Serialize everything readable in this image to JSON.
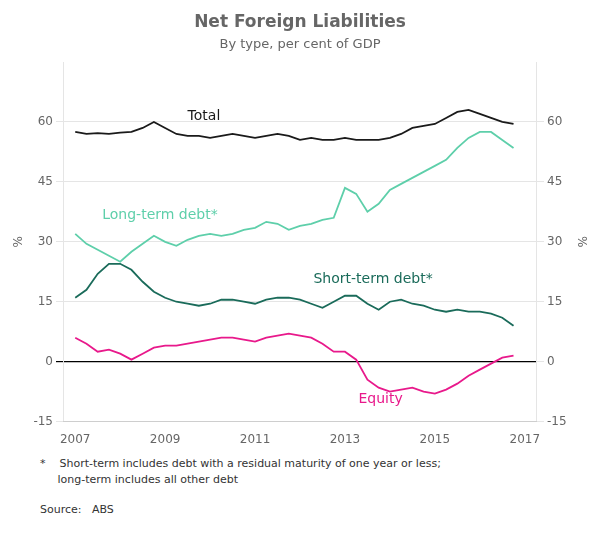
{
  "chart_data": {
    "type": "line",
    "title": "Net Foreign Liabilities",
    "subtitle": "By type, per cent of GDP",
    "ylabel": "%",
    "y2label": "%",
    "footnotes": [
      "*    Short-term includes debt with a residual maturity of one year or less;",
      "     long-term includes all other debt"
    ],
    "source": "Source:   ABS",
    "xlim": [
      2006.75,
      2017.25
    ],
    "xticks": [
      2007,
      2009,
      2011,
      2013,
      2015,
      2017
    ],
    "ylim": [
      -15,
      75
    ],
    "yticks": [
      -15,
      0,
      15,
      30,
      45,
      60
    ],
    "y2lim": [
      -15,
      75
    ],
    "y2ticks": [
      -15,
      0,
      15,
      30,
      45,
      60
    ],
    "grid": true,
    "x": [
      2007.0,
      2007.25,
      2007.5,
      2007.75,
      2008.0,
      2008.25,
      2008.5,
      2008.75,
      2009.0,
      2009.25,
      2009.5,
      2009.75,
      2010.0,
      2010.25,
      2010.5,
      2010.75,
      2011.0,
      2011.25,
      2011.5,
      2011.75,
      2012.0,
      2012.25,
      2012.5,
      2012.75,
      2013.0,
      2013.25,
      2013.5,
      2013.75,
      2014.0,
      2014.25,
      2014.5,
      2014.75,
      2015.0,
      2015.25,
      2015.5,
      2015.75,
      2016.0,
      2016.25,
      2016.5,
      2016.75
    ],
    "series": [
      {
        "name": "Total",
        "color": "#1a1a1a",
        "values": [
          57.5,
          57.0,
          57.2,
          57.0,
          57.3,
          57.5,
          58.5,
          60.0,
          58.5,
          57.0,
          56.5,
          56.5,
          56.0,
          56.5,
          57.0,
          56.5,
          56.0,
          56.5,
          57.0,
          56.5,
          55.5,
          56.0,
          55.5,
          55.5,
          56.0,
          55.5,
          55.5,
          55.5,
          56.0,
          57.0,
          58.5,
          59.0,
          59.5,
          61.0,
          62.5,
          63.0,
          62.0,
          61.0,
          60.0,
          59.5
        ]
      },
      {
        "name": "Long-term debt*",
        "color": "#5ecfaa",
        "values": [
          32.0,
          29.5,
          28.0,
          26.5,
          25.0,
          27.5,
          29.5,
          31.5,
          30.0,
          29.0,
          30.5,
          31.5,
          32.0,
          31.5,
          32.0,
          33.0,
          33.5,
          35.0,
          34.5,
          33.0,
          34.0,
          34.5,
          35.5,
          36.0,
          43.5,
          42.0,
          37.5,
          39.5,
          43.0,
          44.5,
          46.0,
          47.5,
          49.0,
          50.5,
          53.5,
          56.0,
          57.5,
          57.5,
          55.5,
          53.5
        ]
      },
      {
        "name": "Short-term debt*",
        "color": "#1a6b5a",
        "values": [
          16.0,
          18.0,
          22.0,
          24.5,
          24.5,
          23.0,
          20.0,
          17.5,
          16.0,
          15.0,
          14.5,
          14.0,
          14.5,
          15.5,
          15.5,
          15.0,
          14.5,
          15.5,
          16.0,
          16.0,
          15.5,
          14.5,
          13.5,
          15.0,
          16.5,
          16.5,
          14.5,
          13.0,
          15.0,
          15.5,
          14.5,
          14.0,
          13.0,
          12.5,
          13.0,
          12.5,
          12.5,
          12.0,
          11.0,
          9.0
        ]
      },
      {
        "name": "Equity",
        "color": "#e8198b",
        "values": [
          6.0,
          4.5,
          2.5,
          3.0,
          2.0,
          0.5,
          2.0,
          3.5,
          4.0,
          4.0,
          4.5,
          5.0,
          5.5,
          6.0,
          6.0,
          5.5,
          5.0,
          6.0,
          6.5,
          7.0,
          6.5,
          6.0,
          4.5,
          2.5,
          2.5,
          0.5,
          -4.5,
          -6.5,
          -7.5,
          -7.0,
          -6.5,
          -7.5,
          -8.0,
          -7.0,
          -5.5,
          -3.5,
          -2.0,
          -0.5,
          1.0,
          1.5
        ]
      }
    ],
    "annotations": [
      {
        "text": "Total",
        "x": 2009.5,
        "y": 61.5,
        "color": "#1a1a1a"
      },
      {
        "text": "Long-term debt*",
        "x": 2007.6,
        "y": 36.5,
        "color": "#5ecfaa"
      },
      {
        "text": "Short-term debt*",
        "x": 2012.3,
        "y": 20.5,
        "color": "#1a6b5a"
      },
      {
        "text": "Equity",
        "x": 2013.3,
        "y": -9.5,
        "color": "#e8198b"
      }
    ]
  }
}
